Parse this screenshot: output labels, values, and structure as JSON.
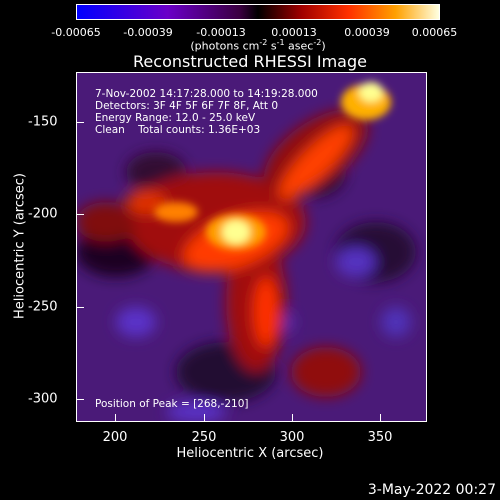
{
  "colorbar": {
    "ticks": [
      "-0.00065",
      "-0.00039",
      "-0.00013",
      "0.00013",
      "0.00039",
      "0.00065"
    ],
    "units_main": "(photons cm",
    "units_e1": "-2",
    "units_mid1": " s",
    "units_e2": "-1",
    "units_mid2": " asec",
    "units_e3": "-2",
    "units_end": ")"
  },
  "title": "Reconstructed RHESSI Image",
  "info_lines": {
    "time_range": "7-Nov-2002 14:17:28.000 to 14:19:28.000",
    "detectors": "Detectors: 3F 4F 5F 6F 7F 8F, Att 0",
    "energy": "Energy Range: 12.0 - 25.0 keV",
    "clean": "Clean    Total counts: 1.36E+03"
  },
  "peak_position": "Position of Peak = [268,-210]",
  "x_axis": {
    "label": "Heliocentric X (arcsec)",
    "ticks": [
      "200",
      "250",
      "300",
      "350"
    ]
  },
  "y_axis": {
    "label": "Heliocentric Y (arcsec)",
    "ticks": [
      "-150",
      "-200",
      "-250",
      "-300"
    ]
  },
  "datestamp": "3-May-2022 00:27"
}
